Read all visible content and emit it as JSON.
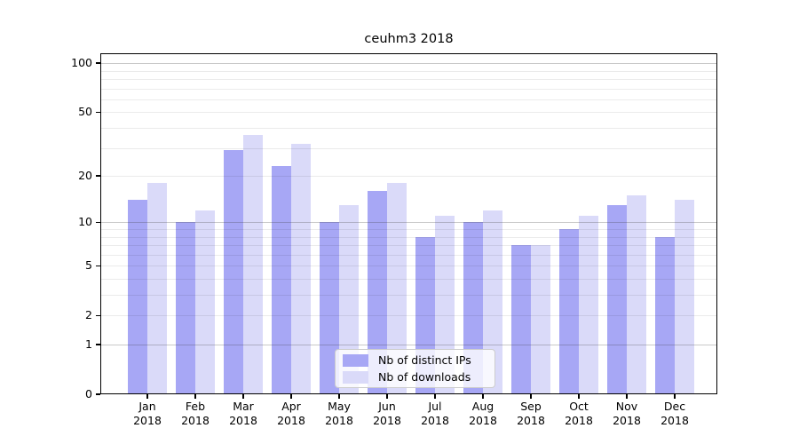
{
  "chart_data": {
    "type": "bar",
    "title": "ceuhm3 2018",
    "categories": [
      "Jan",
      "Feb",
      "Mar",
      "Apr",
      "May",
      "Jun",
      "Jul",
      "Aug",
      "Sep",
      "Oct",
      "Nov",
      "Dec"
    ],
    "category_year": "2018",
    "series": [
      {
        "name": "Nb of distinct IPs",
        "color": "#a7a7f5",
        "values": [
          14,
          10,
          29,
          23,
          10,
          16,
          8,
          10,
          7,
          9,
          13,
          8
        ]
      },
      {
        "name": "Nb of downloads",
        "color": "#dadaf9",
        "values": [
          18,
          12,
          36,
          32,
          13,
          18,
          11,
          12,
          7,
          11,
          15,
          14
        ]
      }
    ],
    "yscale": "log1p",
    "yticks": [
      0,
      1,
      2,
      5,
      10,
      20,
      50,
      100
    ],
    "ylim": [
      0,
      115
    ],
    "grid": true,
    "legend_position": "lower center",
    "xlabel": "",
    "ylabel": ""
  },
  "colors": {
    "major_grid": "#bdbdbd",
    "minor_grid": "#eaeaea",
    "axis": "#000000",
    "legend_border": "#cccccc"
  }
}
